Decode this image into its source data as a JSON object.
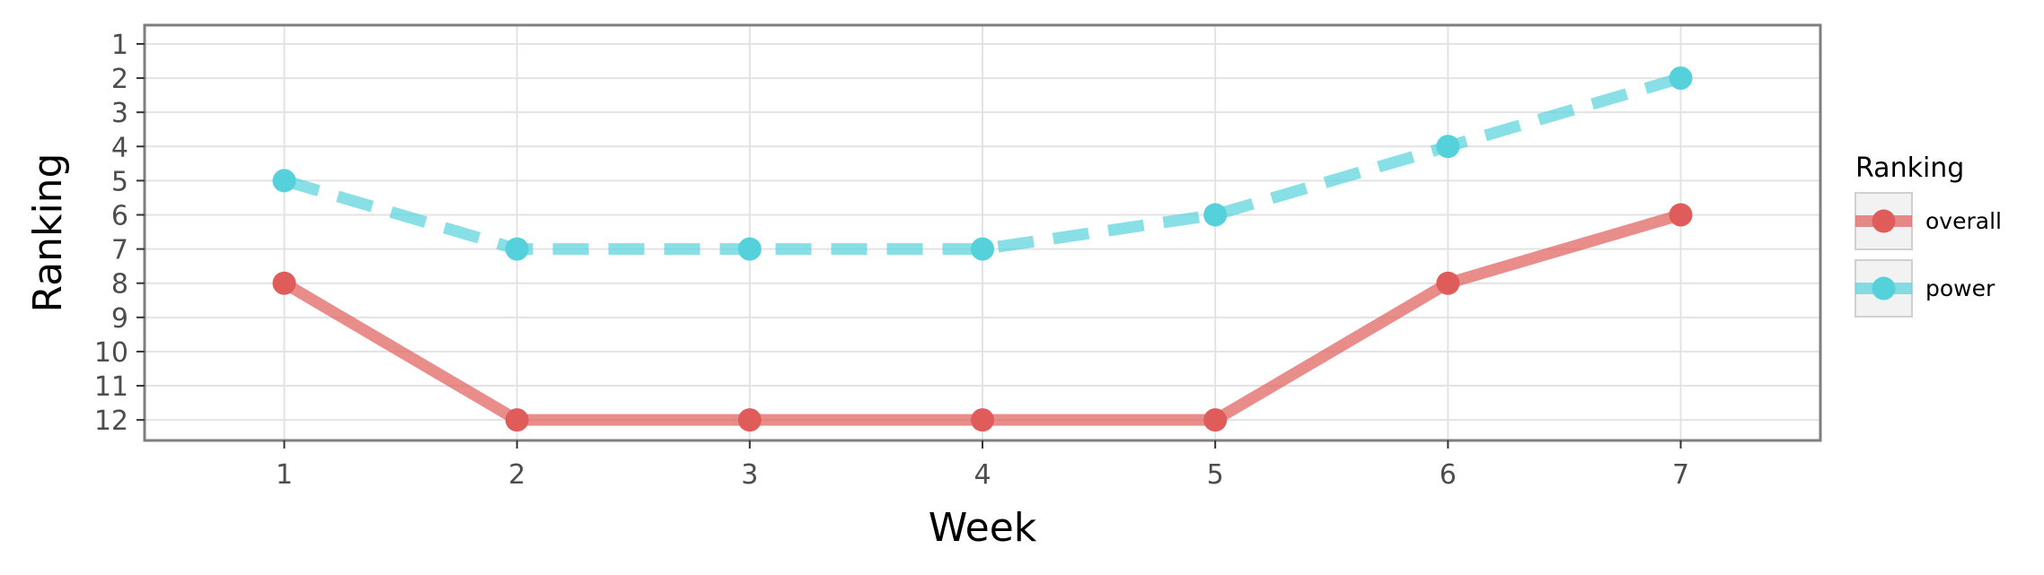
{
  "chart_data": {
    "type": "line",
    "xlabel": "Week",
    "ylabel": "Ranking",
    "x": [
      1,
      2,
      3,
      4,
      5,
      6,
      7
    ],
    "xlim": [
      0.4,
      7.6
    ],
    "ylim": [
      12.6,
      0.45
    ],
    "y_reversed": true,
    "x_ticks": [
      "1",
      "2",
      "3",
      "4",
      "5",
      "6",
      "7"
    ],
    "y_ticks": [
      "1",
      "2",
      "3",
      "4",
      "5",
      "6",
      "7",
      "8",
      "9",
      "10",
      "11",
      "12"
    ],
    "grid": true,
    "legend": {
      "title": "Ranking",
      "position": "right"
    },
    "series": [
      {
        "name": "overall",
        "values": [
          8,
          12,
          12,
          12,
          12,
          8,
          6
        ],
        "color": "#e05c5a",
        "line_style": "solid"
      },
      {
        "name": "power",
        "values": [
          5,
          7,
          7,
          7,
          6,
          4,
          2
        ],
        "color": "#55d1dc",
        "line_style": "dashed"
      }
    ]
  }
}
